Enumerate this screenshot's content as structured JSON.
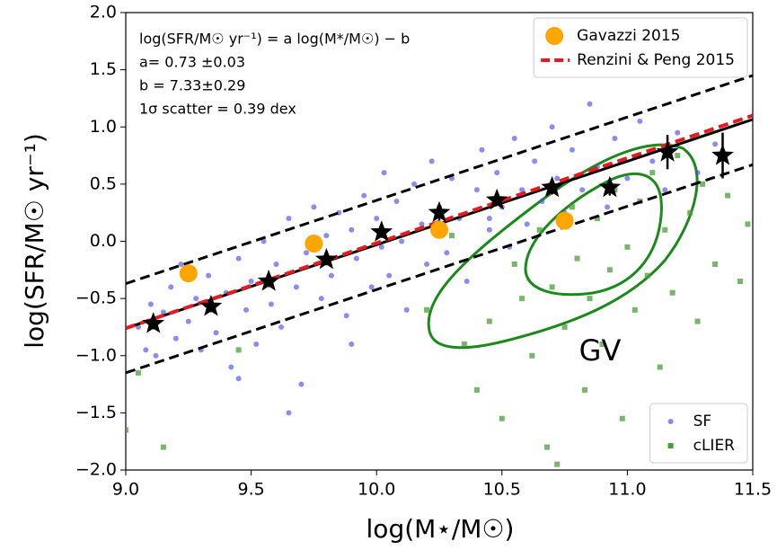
{
  "chart_data": {
    "type": "scatter",
    "xlabel": "log(M⋆/M☉)",
    "ylabel": "log(SFR/M☉ yr⁻¹)",
    "xlim": [
      9.0,
      11.5
    ],
    "ylim": [
      -2.0,
      2.0
    ],
    "xticks": [
      {
        "value": 9.0,
        "label": "9.0"
      },
      9.5,
      {
        "value": 10.0,
        "label": "10.0"
      },
      10.5,
      {
        "value": 11.0,
        "label": "11.0"
      },
      11.5
    ],
    "yticks": [
      {
        "value": 2.0,
        "label": "2.0"
      },
      1.5,
      {
        "value": 1.0,
        "label": "1.0"
      },
      0.5,
      {
        "value": 0.0,
        "label": "0.0"
      },
      {
        "value": -0.5,
        "label": "−0.5"
      },
      {
        "value": -1.0,
        "label": "−1.0"
      },
      {
        "value": -1.5,
        "label": "−1.5"
      },
      {
        "value": -2.0,
        "label": "−2.0"
      }
    ],
    "annotations": [
      "log(SFR/M☉ yr⁻¹) = a log(M*/M☉) − b",
      "a= 0.73 ±0.03",
      "b = 7.33±0.29",
      "1σ scatter = 0.39 dex",
      "GV"
    ],
    "series": [
      {
        "name": "SF",
        "color": "#4f4fe8",
        "marker": "circle",
        "legend": "lower right",
        "x": [
          9.05,
          9.08,
          9.1,
          9.12,
          9.15,
          9.18,
          9.2,
          9.22,
          9.25,
          9.28,
          9.3,
          9.33,
          9.36,
          9.4,
          9.42,
          9.45,
          9.48,
          9.5,
          9.52,
          9.55,
          9.58,
          9.6,
          9.62,
          9.65,
          9.68,
          9.7,
          9.72,
          9.75,
          9.78,
          9.8,
          9.82,
          9.85,
          9.88,
          9.9,
          9.92,
          9.95,
          9.98,
          10.0,
          10.02,
          10.03,
          10.05,
          10.08,
          10.1,
          10.12,
          10.15,
          10.18,
          10.2,
          10.22,
          10.25,
          10.28,
          10.3,
          10.33,
          10.36,
          10.4,
          10.42,
          10.45,
          10.48,
          10.5,
          10.53,
          10.55,
          10.58,
          10.6,
          10.63,
          10.66,
          10.7,
          10.72,
          10.75,
          10.78,
          10.82,
          10.85,
          10.88,
          10.92,
          10.95,
          11.0,
          11.05,
          11.1,
          11.15,
          11.2,
          11.28,
          11.35,
          9.65,
          9.45,
          10.45,
          9.9
        ],
        "values": [
          -0.75,
          -0.95,
          -0.55,
          -1.0,
          -0.62,
          -0.4,
          -0.85,
          -0.2,
          -0.7,
          -0.5,
          -0.95,
          -0.3,
          -0.8,
          -0.45,
          -1.1,
          -0.15,
          -0.6,
          -0.35,
          -0.9,
          0.0,
          -0.55,
          -0.2,
          -0.75,
          0.2,
          -0.4,
          -1.25,
          -0.1,
          0.3,
          -0.5,
          0.05,
          -0.3,
          0.25,
          -0.65,
          0.1,
          -0.15,
          0.4,
          -0.4,
          0.2,
          -0.05,
          0.6,
          -0.3,
          0.35,
          0.0,
          -0.6,
          0.5,
          0.15,
          -0.2,
          0.7,
          0.3,
          -0.1,
          0.55,
          0.2,
          -0.35,
          0.45,
          0.8,
          0.1,
          0.6,
          0.3,
          -0.05,
          0.9,
          0.45,
          0.15,
          0.7,
          0.35,
          1.0,
          0.55,
          0.25,
          0.8,
          0.45,
          1.2,
          0.65,
          0.3,
          0.9,
          0.55,
          1.05,
          0.7,
          0.45,
          0.95,
          0.6,
          0.85,
          -1.5,
          -1.2,
          0.2,
          -0.9
        ]
      },
      {
        "name": "cLIER",
        "color": "#4a9e3a",
        "marker": "square",
        "legend": "lower right",
        "x": [
          9.0,
          9.05,
          9.15,
          9.45,
          10.2,
          10.3,
          10.35,
          10.4,
          10.45,
          10.5,
          10.55,
          10.58,
          10.62,
          10.65,
          10.68,
          10.7,
          10.72,
          10.75,
          10.78,
          10.8,
          10.83,
          10.85,
          10.88,
          10.9,
          10.93,
          10.95,
          10.98,
          11.0,
          11.03,
          11.05,
          11.08,
          11.1,
          11.13,
          11.15,
          11.18,
          11.2,
          11.22,
          11.25,
          11.28,
          11.3,
          11.35,
          11.4,
          11.45,
          11.48,
          11.42
        ],
        "values": [
          -1.65,
          -1.15,
          -1.8,
          -0.95,
          -0.6,
          0.05,
          -0.9,
          -1.3,
          -0.7,
          -1.55,
          -0.2,
          -0.5,
          -1.0,
          0.1,
          -1.8,
          -0.4,
          -1.95,
          -0.75,
          0.3,
          -0.15,
          -1.3,
          -0.5,
          0.2,
          -0.9,
          -0.25,
          0.45,
          -1.55,
          -0.05,
          -0.6,
          0.35,
          -0.3,
          0.6,
          -1.1,
          0.1,
          -0.45,
          0.75,
          -1.65,
          0.25,
          -0.7,
          0.5,
          -0.2,
          0.4,
          -0.35,
          0.15,
          -1.85
        ]
      },
      {
        "color": "#000000",
        "marker": "line",
        "linestyle": "dashed",
        "x": [
          9.0,
          11.5
        ],
        "values": [
          -0.37,
          1.45
        ]
      },
      {
        "color": "#000000",
        "marker": "line",
        "linestyle": "dashed",
        "x": [
          9.0,
          11.5
        ],
        "values": [
          -1.15,
          0.67
        ]
      },
      {
        "color": "#000000",
        "marker": "line",
        "linestyle": "solid",
        "x": [
          9.0,
          11.5
        ],
        "values": [
          -0.76,
          1.065
        ]
      },
      {
        "name": "Renzini & Peng 2015",
        "color": "#e8191f",
        "marker": "line",
        "linestyle": "dashed",
        "legend": "upper right",
        "x": [
          9.0,
          11.5
        ],
        "values": [
          -0.76,
          1.1
        ]
      },
      {
        "name": "Gavazzi 2015",
        "color": "#ffa500",
        "marker": "circle-large",
        "legend": "upper right",
        "x": [
          9.25,
          9.75,
          10.25,
          10.75
        ],
        "values": [
          -0.28,
          -0.02,
          0.1,
          0.18
        ]
      },
      {
        "color": "#000000",
        "marker": "star",
        "x": [
          9.11,
          9.34,
          9.57,
          9.8,
          10.02,
          10.25,
          10.48,
          10.7,
          10.93,
          11.16,
          11.38
        ],
        "values": [
          -0.72,
          -0.57,
          -0.35,
          -0.16,
          0.08,
          0.25,
          0.36,
          0.47,
          0.47,
          0.78,
          0.75
        ],
        "errors": [
          0.05,
          0.05,
          0.05,
          0.05,
          0.05,
          0.07,
          0.05,
          0.06,
          0.07,
          0.15,
          0.2
        ]
      }
    ]
  }
}
